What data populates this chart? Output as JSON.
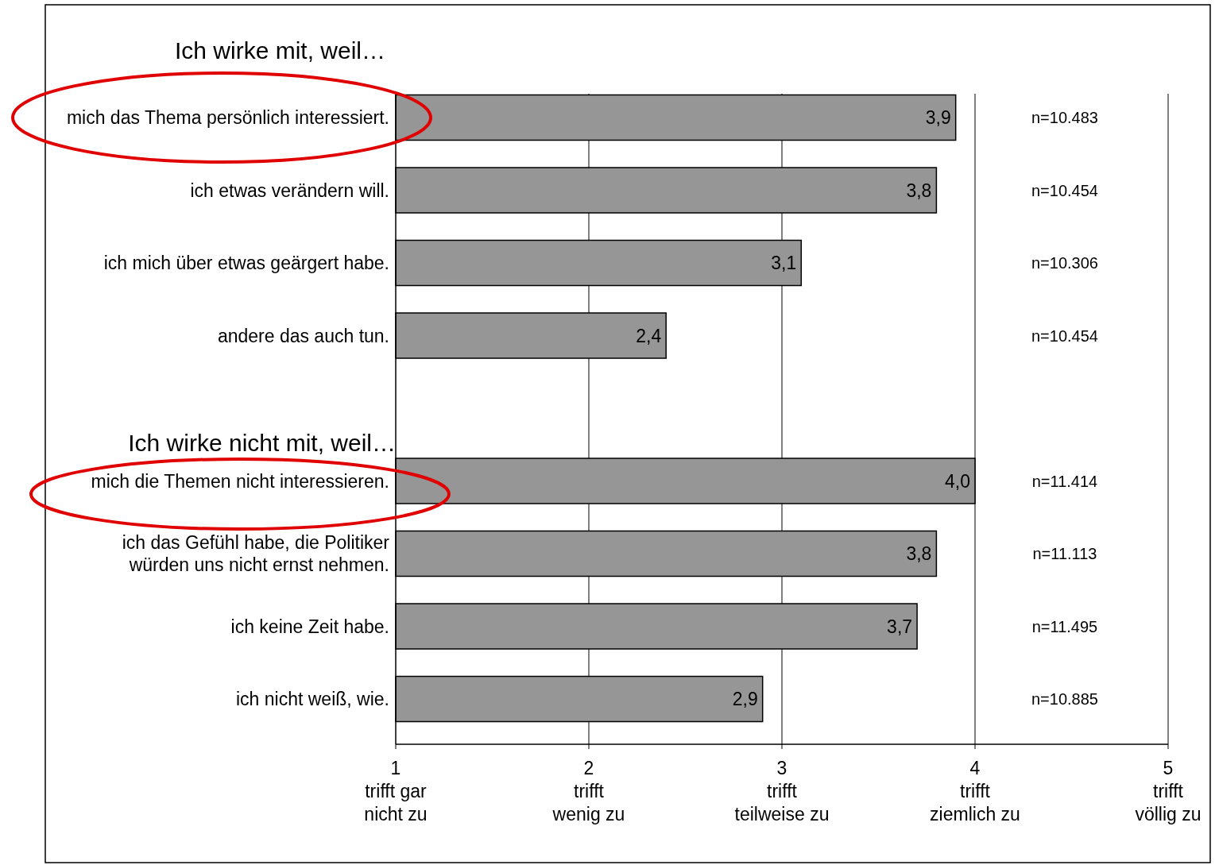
{
  "chart_data": {
    "type": "bar",
    "orientation": "horizontal",
    "title": "Ich wirke mit, weil…",
    "categories": [
      "mich das Thema persönlich interessiert.",
      "ich etwas verändern will.",
      "ich mich über etwas geärgert habe.",
      "andere das auch tun.",
      null,
      "mich die Themen nicht interessieren.",
      "ich das Gefühl habe, die Politiker würden uns nicht ernst nehmen.",
      "ich keine Zeit habe.",
      "ich nicht weiß, wie."
    ],
    "values": [
      3.9,
      3.8,
      3.1,
      2.4,
      null,
      4.0,
      3.8,
      3.7,
      2.9
    ],
    "value_labels": [
      "3,9",
      "3,8",
      "3,1",
      "2,4",
      null,
      "4,0",
      "3,8",
      "3,7",
      "2,9"
    ],
    "color": "#969696",
    "xlim": [
      1,
      5
    ],
    "xticks": [
      {
        "value": 1,
        "label": "1\ntrifft gar\nnicht zu"
      },
      {
        "value": 2,
        "label": "2\ntrifft\nwenig zu"
      },
      {
        "value": 3,
        "label": "3\ntrifft\nteilweise zu"
      },
      {
        "value": 4,
        "label": "4\ntrifft\nziemlich zu"
      },
      {
        "value": 5,
        "label": "5\ntrifft\nvöllig zu"
      }
    ],
    "grid": "x",
    "annotations": [
      "Ich wirke nicht mit, weil…",
      "n=10.483",
      "n=10.454",
      "n=10.306",
      "n=10.454",
      "n=11.414",
      "n=11.113",
      "n=11.495",
      "n=10.885"
    ]
  }
}
